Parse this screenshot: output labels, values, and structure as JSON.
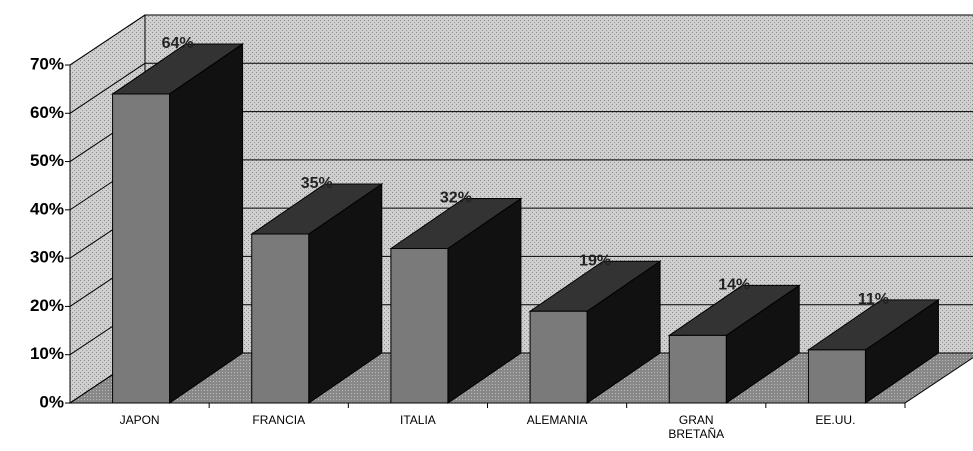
{
  "chart_data": {
    "type": "bar3d",
    "categories": [
      "JAPON",
      "FRANCIA",
      "ITALIA",
      "ALEMANIA",
      "GRAN BRETAÑA",
      "EE.UU."
    ],
    "values": [
      64,
      35,
      32,
      19,
      14,
      11
    ],
    "value_labels": [
      "64%",
      "35%",
      "32%",
      "19%",
      "14%",
      "11%"
    ],
    "ylim": [
      0,
      70
    ],
    "yticks": [
      {
        "value": 0,
        "label": "0%"
      },
      {
        "value": 10,
        "label": "10%"
      },
      {
        "value": 20,
        "label": "20%"
      },
      {
        "value": 30,
        "label": "30%"
      },
      {
        "value": 40,
        "label": "40%"
      },
      {
        "value": 50,
        "label": "50%"
      },
      {
        "value": 60,
        "label": "60%"
      },
      {
        "value": 70,
        "label": "70%"
      }
    ],
    "grid": true,
    "color": "#7a7a7a"
  }
}
